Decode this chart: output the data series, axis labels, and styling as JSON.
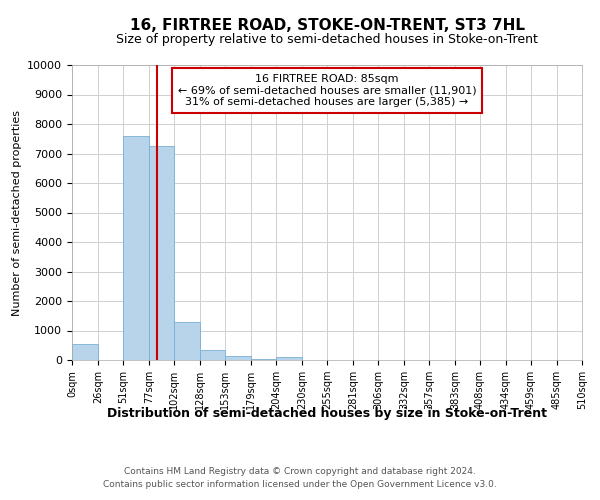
{
  "title": "16, FIRTREE ROAD, STOKE-ON-TRENT, ST3 7HL",
  "subtitle": "Size of property relative to semi-detached houses in Stoke-on-Trent",
  "xlabel": "Distribution of semi-detached houses by size in Stoke-on-Trent",
  "ylabel": "Number of semi-detached properties",
  "footer1": "Contains HM Land Registry data © Crown copyright and database right 2024.",
  "footer2": "Contains public sector information licensed under the Open Government Licence v3.0.",
  "annotation_line1": "16 FIRTREE ROAD: 85sqm",
  "annotation_line2": "← 69% of semi-detached houses are smaller (11,901)",
  "annotation_line3": "31% of semi-detached houses are larger (5,385) →",
  "property_size": 85,
  "bins": [
    0,
    26,
    51,
    77,
    102,
    128,
    153,
    179,
    204,
    230,
    255,
    281,
    306,
    332,
    357,
    383,
    408,
    434,
    459,
    485,
    510
  ],
  "bin_labels": [
    "0sqm",
    "26sqm",
    "51sqm",
    "77sqm",
    "102sqm",
    "128sqm",
    "153sqm",
    "179sqm",
    "204sqm",
    "230sqm",
    "255sqm",
    "281sqm",
    "306sqm",
    "332sqm",
    "357sqm",
    "383sqm",
    "408sqm",
    "434sqm",
    "459sqm",
    "485sqm",
    "510sqm"
  ],
  "counts": [
    550,
    0,
    7600,
    7250,
    1300,
    330,
    130,
    50,
    100,
    0,
    0,
    0,
    0,
    0,
    0,
    0,
    0,
    0,
    0,
    0
  ],
  "bar_color": "#b8d4ea",
  "bar_edge_color": "#7aafd4",
  "line_color": "#cc0000",
  "grid_color": "#d0d0d0",
  "background_color": "#ffffff",
  "ylim": [
    0,
    10000
  ],
  "yticks": [
    0,
    1000,
    2000,
    3000,
    4000,
    5000,
    6000,
    7000,
    8000,
    9000,
    10000
  ]
}
